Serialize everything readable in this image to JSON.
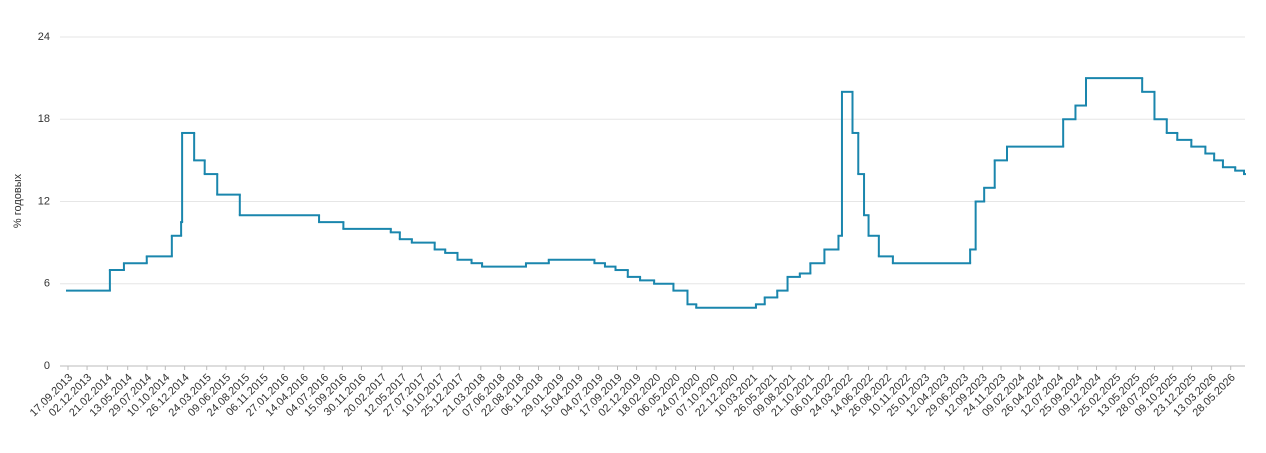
{
  "chart_data": {
    "type": "step-line",
    "y_label": "% годовых",
    "ylim": [
      0,
      24
    ],
    "yticks": [
      0,
      6,
      12,
      18,
      24
    ],
    "grid": true,
    "xlim": [
      "13.09.2013",
      "24.07.2026"
    ],
    "xticks": [
      "17.09.2013",
      "02.12.2013",
      "21.02.2014",
      "13.05.2014",
      "29.07.2014",
      "10.10.2014",
      "26.12.2014",
      "24.03.2015",
      "09.06.2015",
      "24.08.2015",
      "06.11.2015",
      "27.01.2016",
      "14.04.2016",
      "04.07.2016",
      "15.09.2016",
      "30.11.2016",
      "20.02.2017",
      "12.05.2017",
      "27.07.2017",
      "10.10.2017",
      "25.12.2017",
      "21.03.2018",
      "07.06.2018",
      "22.08.2018",
      "06.11.2018",
      "29.01.2019",
      "15.04.2019",
      "04.07.2019",
      "17.09.2019",
      "02.12.2019",
      "18.02.2020",
      "06.05.2020",
      "24.07.2020",
      "07.10.2020",
      "22.12.2020",
      "10.03.2021",
      "26.05.2021",
      "09.08.2021",
      "21.10.2021",
      "06.01.2022",
      "24.03.2022",
      "14.06.2022",
      "26.08.2022",
      "10.11.2022",
      "25.01.2023",
      "12.04.2023",
      "29.06.2023",
      "12.09.2023",
      "24.11.2023",
      "09.02.2024",
      "26.04.2024",
      "12.07.2024",
      "25.09.2024",
      "09.12.2024",
      "25.02.2025",
      "13.05.2025",
      "28.07.2025",
      "09.10.2025",
      "23.12.2025",
      "13.03.2026",
      "28.05.2026"
    ],
    "series": [
      {
        "color": "#1a86ad",
        "x": [
          "13.09.2013",
          "03.03.2014",
          "28.04.2014",
          "28.07.2014",
          "05.11.2014",
          "12.12.2014",
          "16.12.2014",
          "02.02.2015",
          "16.03.2015",
          "05.05.2015",
          "03.08.2015",
          "14.06.2016",
          "19.09.2016",
          "27.03.2017",
          "02.05.2017",
          "19.06.2017",
          "18.09.2017",
          "30.10.2017",
          "18.12.2017",
          "12.02.2018",
          "26.03.2018",
          "17.09.2018",
          "17.12.2018",
          "17.06.2019",
          "29.07.2019",
          "09.09.2019",
          "28.10.2019",
          "16.12.2019",
          "10.02.2020",
          "27.04.2020",
          "22.06.2020",
          "27.07.2020",
          "22.03.2021",
          "26.04.2021",
          "15.06.2021",
          "26.07.2021",
          "13.09.2021",
          "25.10.2021",
          "20.12.2021",
          "14.02.2022",
          "28.02.2022",
          "11.04.2022",
          "04.05.2022",
          "27.05.2022",
          "14.06.2022",
          "25.07.2022",
          "19.09.2022",
          "24.07.2023",
          "15.08.2023",
          "18.09.2023",
          "30.10.2023",
          "18.12.2023",
          "29.07.2024",
          "16.09.2024",
          "28.10.2024",
          "09.06.2025",
          "28.07.2025",
          "15.09.2025",
          "27.10.2025",
          "22.12.2025",
          "16.02.2026",
          "23.03.2026",
          "27.04.2026",
          "15.06.2026",
          "20.07.2026"
        ],
        "values": [
          5.5,
          7,
          7.5,
          8,
          9.5,
          10.5,
          17,
          15,
          14,
          12.5,
          11,
          10.5,
          10,
          9.75,
          9.25,
          9,
          8.5,
          8.25,
          7.75,
          7.5,
          7.25,
          7.5,
          7.75,
          7.5,
          7.25,
          7,
          6.5,
          6.25,
          6,
          5.5,
          4.5,
          4.25,
          4.5,
          5,
          5.5,
          6.5,
          6.75,
          7.5,
          8.5,
          9.5,
          20,
          17,
          14,
          11,
          9.5,
          8,
          7.5,
          8.5,
          12,
          13,
          15,
          16,
          18,
          19,
          21,
          20,
          18,
          17,
          16.5,
          16,
          15.5,
          15,
          14.5,
          14.25,
          14
        ]
      }
    ]
  }
}
